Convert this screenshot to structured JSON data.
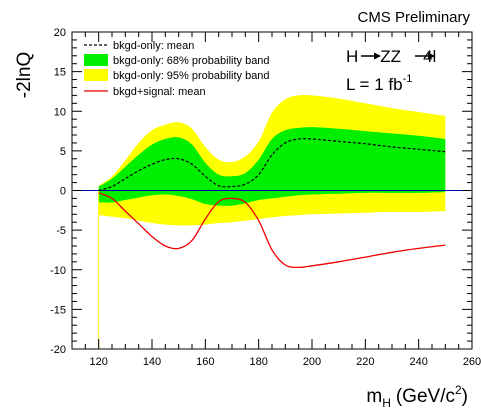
{
  "header": "CMS Preliminary",
  "colors": {
    "band_95": "#ffff00",
    "band_68": "#00ee00",
    "signal_line": "#ee0000",
    "mean_line": "#000000",
    "zero_line": "#0000aa"
  },
  "chart_data": {
    "type": "area",
    "xlabel": "m",
    "xlabel_sub": "H",
    "xlabel_unit": "(GeV/c",
    "xlabel_unit_sup": "2",
    "xlabel_unit_end": ")",
    "ylabel": "-2lnQ",
    "xlim": [
      110,
      260
    ],
    "ylim": [
      -20,
      20
    ],
    "xticks": [
      "120",
      "140",
      "160",
      "180",
      "200",
      "220",
      "240",
      "260"
    ],
    "xtick_values": [
      120,
      140,
      160,
      180,
      200,
      220,
      240,
      260
    ],
    "yticks": [
      "-20",
      "-15",
      "-10",
      "-5",
      "0",
      "5",
      "10",
      "15",
      "20"
    ],
    "ytick_values": [
      -20,
      -15,
      -10,
      -5,
      0,
      5,
      10,
      15,
      20
    ],
    "legend_position": "top-left",
    "annotation": {
      "process_h": "H",
      "process_zz": "ZZ",
      "process_4l": "4l",
      "lumi_label": "L = 1 fb",
      "lumi_sup": "-1"
    },
    "x": [
      120,
      125,
      130,
      135,
      140,
      145,
      150,
      155,
      160,
      165,
      170,
      175,
      180,
      185,
      190,
      195,
      200,
      210,
      220,
      230,
      240,
      250
    ],
    "series": [
      {
        "name": "bkgd-only: mean",
        "style": "dashed",
        "values": [
          0.0,
          0.5,
          1.5,
          2.5,
          3.3,
          3.9,
          4.0,
          3.3,
          1.8,
          0.6,
          0.5,
          0.8,
          2.0,
          4.5,
          6.0,
          6.5,
          6.5,
          6.2,
          5.9,
          5.5,
          5.2,
          4.9
        ]
      },
      {
        "name": "bkgd-only: 68% probability band",
        "style": "band",
        "upper": [
          0.5,
          1.5,
          3.0,
          4.5,
          5.8,
          6.5,
          6.7,
          5.8,
          3.5,
          2.0,
          1.8,
          2.2,
          3.9,
          6.5,
          7.6,
          7.9,
          8.0,
          7.8,
          7.5,
          7.2,
          6.9,
          6.5
        ],
        "lower": [
          -1.5,
          -1.5,
          -1.2,
          -0.9,
          -0.6,
          -0.5,
          -0.7,
          -1.1,
          -1.7,
          -1.9,
          -1.9,
          -1.6,
          -1.2,
          -1.0,
          -0.8,
          -0.6,
          -0.5,
          -0.4,
          -0.3,
          -0.3,
          -0.3,
          -0.2
        ]
      },
      {
        "name": "bkgd-only: 95% probability band",
        "style": "band",
        "upper": [
          0.6,
          1.8,
          3.8,
          6.0,
          7.6,
          8.3,
          8.6,
          7.8,
          5.5,
          3.9,
          3.6,
          4.3,
          6.2,
          9.8,
          11.5,
          12.0,
          12.0,
          11.6,
          11.0,
          10.4,
          9.9,
          9.4
        ],
        "lower": [
          -3.1,
          -3.3,
          -3.5,
          -3.8,
          -4.1,
          -4.3,
          -4.4,
          -4.4,
          -4.3,
          -4.1,
          -4.0,
          -3.8,
          -3.6,
          -3.4,
          -3.2,
          -3.1,
          -3.0,
          -2.9,
          -2.8,
          -2.7,
          -2.7,
          -2.6
        ]
      },
      {
        "name": "bkgd+signal: mean",
        "style": "solid",
        "values": [
          -0.3,
          -1.0,
          -2.6,
          -4.2,
          -5.8,
          -7.0,
          -7.3,
          -6.3,
          -3.6,
          -1.4,
          -1.0,
          -1.5,
          -3.8,
          -7.5,
          -9.4,
          -9.7,
          -9.5,
          -9.0,
          -8.4,
          -7.8,
          -7.3,
          -6.9
        ]
      }
    ]
  }
}
